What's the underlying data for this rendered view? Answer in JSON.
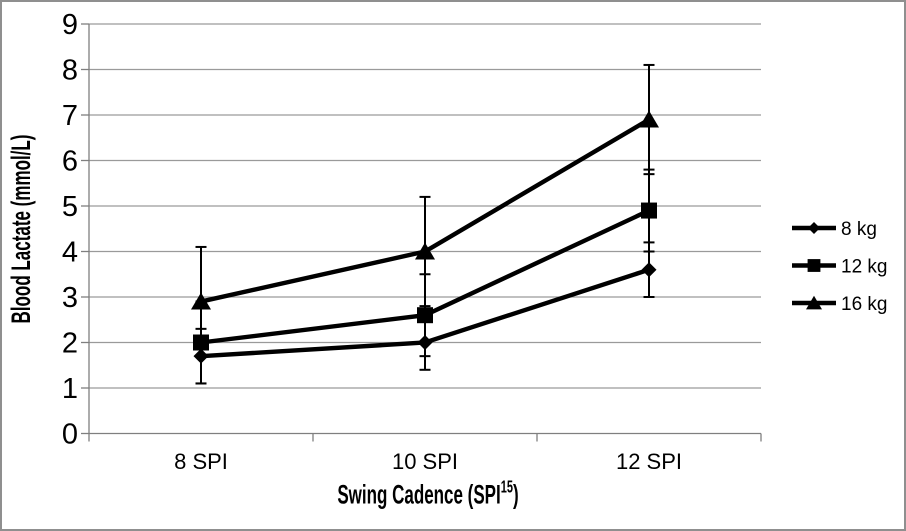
{
  "chart_data": {
    "type": "line",
    "title": "",
    "categories": [
      "8 SPI",
      "10 SPI",
      "12 SPI"
    ],
    "series": [
      {
        "name": "8 kg",
        "marker": "diamond",
        "values": [
          1.7,
          2.0,
          3.6
        ],
        "errors": [
          0.6,
          0.6,
          0.6
        ]
      },
      {
        "name": "12 kg",
        "marker": "square",
        "values": [
          2.0,
          2.6,
          4.9
        ],
        "errors": [
          0.9,
          0.9,
          0.9
        ]
      },
      {
        "name": "16 kg",
        "marker": "triangle",
        "values": [
          2.9,
          4.0,
          6.9
        ],
        "errors": [
          1.2,
          1.2,
          1.2
        ]
      }
    ],
    "xlabel": "Swing Cadence (SPI15)",
    "xlabel_parts": {
      "prefix": "Swing Cadence (SPI",
      "sup": "15",
      "suffix": ")"
    },
    "ylabel": "Blood Lactate (mmol/L)",
    "ylim": [
      0,
      9
    ],
    "ytick_step": 1,
    "yticks": [
      0,
      1,
      2,
      3,
      4,
      5,
      6,
      7,
      8,
      9
    ],
    "grid": "horizontal",
    "legend_position": "right",
    "colors": {
      "series": "#000000",
      "gridline": "#9a9a9a",
      "axis": "#7f7f7f",
      "text": "#000000",
      "border": "#8f8f8f",
      "background": "#ffffff"
    }
  }
}
